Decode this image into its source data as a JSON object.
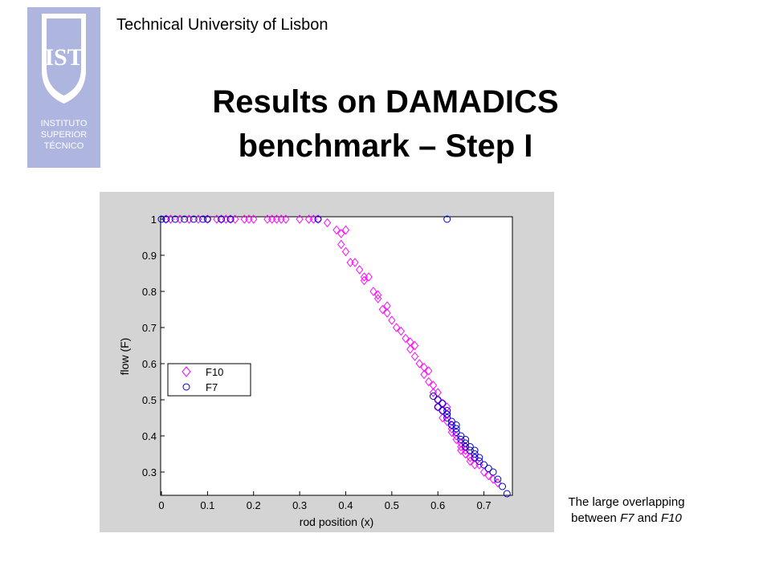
{
  "header": {
    "institution": "Technical University of Lisbon",
    "logo_text": [
      "INSTITUTO",
      "SUPERIOR",
      "TÉCNICO"
    ],
    "logo_monogram": "IST",
    "title_line1": "Results on DAMADICS",
    "title_line2": "benchmark – Step I"
  },
  "note": {
    "line1": "The large overlapping",
    "line2_prefix": "between ",
    "line2_a": "F7",
    "line2_mid": " and ",
    "line2_b": "F10"
  },
  "colors": {
    "logo_bg": "#aeb6e0",
    "logo_fg": "#ffffff",
    "frame_bg": "#d4d4d4",
    "f10": "#ff00ff",
    "f7": "#0000cc"
  },
  "chart_data": {
    "type": "scatter",
    "xlabel": "rod position (x)",
    "ylabel": "flow (F)",
    "xlim": [
      0,
      0.76
    ],
    "ylim": [
      0.24,
      1.0
    ],
    "xticks": [
      0,
      0.1,
      0.2,
      0.3,
      0.4,
      0.5,
      0.6,
      0.7
    ],
    "xtick_labels": [
      "0",
      "0.1",
      "0.2",
      "0.3",
      "0.4",
      "0.5",
      "0.6",
      "0.7"
    ],
    "yticks": [
      0.3,
      0.4,
      0.5,
      0.6,
      0.7,
      0.8,
      0.9,
      1.0
    ],
    "ytick_labels": [
      "0.3",
      "0.4",
      "0.5",
      "0.6",
      "0.7",
      "0.8",
      "0.9",
      "1"
    ],
    "grid": false,
    "legend_position": "center-left",
    "series": [
      {
        "name": "F10",
        "marker": "diamond",
        "color": "#ff00ff",
        "points": [
          [
            0.01,
            1.0
          ],
          [
            0.02,
            1.0
          ],
          [
            0.04,
            1.0
          ],
          [
            0.06,
            1.0
          ],
          [
            0.08,
            1.0
          ],
          [
            0.1,
            1.0
          ],
          [
            0.12,
            1.0
          ],
          [
            0.13,
            1.0
          ],
          [
            0.14,
            1.0
          ],
          [
            0.15,
            1.0
          ],
          [
            0.16,
            1.0
          ],
          [
            0.18,
            1.0
          ],
          [
            0.19,
            1.0
          ],
          [
            0.2,
            1.0
          ],
          [
            0.23,
            1.0
          ],
          [
            0.24,
            1.0
          ],
          [
            0.25,
            1.0
          ],
          [
            0.26,
            1.0
          ],
          [
            0.27,
            1.0
          ],
          [
            0.3,
            1.0
          ],
          [
            0.32,
            1.0
          ],
          [
            0.33,
            1.0
          ],
          [
            0.34,
            1.0
          ],
          [
            0.36,
            0.99
          ],
          [
            0.38,
            0.97
          ],
          [
            0.39,
            0.96
          ],
          [
            0.4,
            0.97
          ],
          [
            0.39,
            0.93
          ],
          [
            0.4,
            0.91
          ],
          [
            0.41,
            0.88
          ],
          [
            0.42,
            0.88
          ],
          [
            0.43,
            0.86
          ],
          [
            0.44,
            0.84
          ],
          [
            0.44,
            0.83
          ],
          [
            0.45,
            0.84
          ],
          [
            0.46,
            0.8
          ],
          [
            0.47,
            0.78
          ],
          [
            0.47,
            0.79
          ],
          [
            0.48,
            0.75
          ],
          [
            0.49,
            0.74
          ],
          [
            0.49,
            0.76
          ],
          [
            0.5,
            0.72
          ],
          [
            0.51,
            0.7
          ],
          [
            0.52,
            0.69
          ],
          [
            0.53,
            0.67
          ],
          [
            0.54,
            0.66
          ],
          [
            0.54,
            0.64
          ],
          [
            0.55,
            0.65
          ],
          [
            0.55,
            0.62
          ],
          [
            0.56,
            0.6
          ],
          [
            0.57,
            0.59
          ],
          [
            0.57,
            0.57
          ],
          [
            0.58,
            0.58
          ],
          [
            0.58,
            0.55
          ],
          [
            0.59,
            0.54
          ],
          [
            0.59,
            0.52
          ],
          [
            0.6,
            0.52
          ],
          [
            0.6,
            0.5
          ],
          [
            0.61,
            0.49
          ],
          [
            0.61,
            0.47
          ],
          [
            0.62,
            0.46
          ],
          [
            0.62,
            0.44
          ],
          [
            0.63,
            0.43
          ],
          [
            0.63,
            0.41
          ],
          [
            0.64,
            0.4
          ],
          [
            0.64,
            0.39
          ],
          [
            0.65,
            0.38
          ],
          [
            0.65,
            0.37
          ],
          [
            0.66,
            0.36
          ],
          [
            0.66,
            0.35
          ],
          [
            0.67,
            0.34
          ],
          [
            0.67,
            0.33
          ],
          [
            0.68,
            0.32
          ],
          [
            0.69,
            0.32
          ],
          [
            0.7,
            0.3
          ],
          [
            0.71,
            0.29
          ],
          [
            0.72,
            0.28
          ],
          [
            0.73,
            0.27
          ],
          [
            0.62,
            0.48
          ],
          [
            0.6,
            0.48
          ],
          [
            0.61,
            0.45
          ],
          [
            0.63,
            0.42
          ],
          [
            0.65,
            0.36
          ],
          [
            0.66,
            0.37
          ],
          [
            0.68,
            0.34
          ]
        ]
      },
      {
        "name": "F7",
        "marker": "circle",
        "color": "#0000cc",
        "points": [
          [
            0.0,
            1.0
          ],
          [
            0.01,
            1.0
          ],
          [
            0.03,
            1.0
          ],
          [
            0.05,
            1.0
          ],
          [
            0.07,
            1.0
          ],
          [
            0.09,
            1.0
          ],
          [
            0.1,
            1.0
          ],
          [
            0.13,
            1.0
          ],
          [
            0.15,
            1.0
          ],
          [
            0.34,
            1.0
          ],
          [
            0.62,
            1.0
          ],
          [
            0.59,
            0.51
          ],
          [
            0.6,
            0.5
          ],
          [
            0.61,
            0.49
          ],
          [
            0.6,
            0.48
          ],
          [
            0.61,
            0.47
          ],
          [
            0.62,
            0.46
          ],
          [
            0.62,
            0.45
          ],
          [
            0.63,
            0.44
          ],
          [
            0.63,
            0.43
          ],
          [
            0.64,
            0.42
          ],
          [
            0.64,
            0.41
          ],
          [
            0.65,
            0.4
          ],
          [
            0.65,
            0.39
          ],
          [
            0.66,
            0.38
          ],
          [
            0.66,
            0.37
          ],
          [
            0.67,
            0.37
          ],
          [
            0.67,
            0.36
          ],
          [
            0.68,
            0.35
          ],
          [
            0.68,
            0.34
          ],
          [
            0.69,
            0.34
          ],
          [
            0.69,
            0.33
          ],
          [
            0.7,
            0.32
          ],
          [
            0.71,
            0.31
          ],
          [
            0.72,
            0.3
          ],
          [
            0.73,
            0.28
          ],
          [
            0.74,
            0.26
          ],
          [
            0.75,
            0.24
          ],
          [
            0.62,
            0.47
          ],
          [
            0.64,
            0.43
          ],
          [
            0.66,
            0.39
          ],
          [
            0.68,
            0.36
          ]
        ]
      }
    ]
  }
}
